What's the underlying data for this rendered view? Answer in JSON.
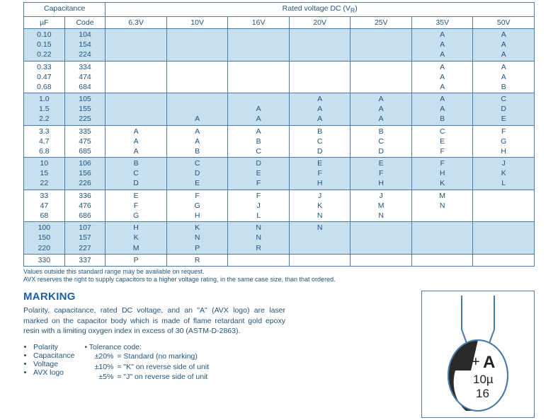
{
  "table": {
    "header_cap": "Capacitance",
    "header_rated": "Rated voltage DC (V",
    "header_rated_sub": "R",
    "header_rated_close": ")",
    "uf": "µF",
    "code": "Code",
    "voltages": [
      "6.3V",
      "10V",
      "16V",
      "20V",
      "25V",
      "35V",
      "50V"
    ],
    "col_widths_pct": [
      8,
      8,
      12,
      12,
      12,
      12,
      12,
      12,
      12
    ],
    "groups": [
      {
        "alt": true,
        "rows": [
          {
            "uf": "0.10",
            "code": "104",
            "v": [
              "",
              "",
              "",
              "",
              "",
              "A",
              "A"
            ]
          },
          {
            "uf": "0.15",
            "code": "154",
            "v": [
              "",
              "",
              "",
              "",
              "",
              "A",
              "A"
            ]
          },
          {
            "uf": "0.22",
            "code": "224",
            "v": [
              "",
              "",
              "",
              "",
              "",
              "A",
              "A"
            ]
          }
        ]
      },
      {
        "alt": false,
        "rows": [
          {
            "uf": "0.33",
            "code": "334",
            "v": [
              "",
              "",
              "",
              "",
              "",
              "A",
              "A"
            ]
          },
          {
            "uf": "0.47",
            "code": "474",
            "v": [
              "",
              "",
              "",
              "",
              "",
              "A",
              "A"
            ]
          },
          {
            "uf": "0.68",
            "code": "684",
            "v": [
              "",
              "",
              "",
              "",
              "",
              "A",
              "B"
            ]
          }
        ]
      },
      {
        "alt": true,
        "rows": [
          {
            "uf": "1.0",
            "code": "105",
            "v": [
              "",
              "",
              "",
              "A",
              "A",
              "A",
              "C"
            ]
          },
          {
            "uf": "1.5",
            "code": "155",
            "v": [
              "",
              "",
              "A",
              "A",
              "A",
              "A",
              "D"
            ]
          },
          {
            "uf": "2.2",
            "code": "225",
            "v": [
              "",
              "A",
              "A",
              "A",
              "A",
              "B",
              "E"
            ]
          }
        ]
      },
      {
        "alt": false,
        "rows": [
          {
            "uf": "3.3",
            "code": "335",
            "v": [
              "A",
              "A",
              "A",
              "B",
              "B",
              "C",
              "F"
            ]
          },
          {
            "uf": "4.7",
            "code": "475",
            "v": [
              "A",
              "A",
              "B",
              "C",
              "C",
              "E",
              "G"
            ]
          },
          {
            "uf": "6.8",
            "code": "685",
            "v": [
              "A",
              "B",
              "C",
              "D",
              "D",
              "F",
              "H"
            ]
          }
        ]
      },
      {
        "alt": true,
        "rows": [
          {
            "uf": "10",
            "code": "106",
            "v": [
              "B",
              "C",
              "D",
              "E",
              "E",
              "F",
              "J"
            ]
          },
          {
            "uf": "15",
            "code": "156",
            "v": [
              "C",
              "D",
              "E",
              "F",
              "F",
              "H",
              "K"
            ]
          },
          {
            "uf": "22",
            "code": "226",
            "v": [
              "D",
              "E",
              "F",
              "H",
              "H",
              "K",
              "L"
            ]
          }
        ]
      },
      {
        "alt": false,
        "rows": [
          {
            "uf": "33",
            "code": "336",
            "v": [
              "E",
              "F",
              "F",
              "J",
              "J",
              "M",
              ""
            ]
          },
          {
            "uf": "47",
            "code": "476",
            "v": [
              "F",
              "G",
              "J",
              "K",
              "M",
              "N",
              ""
            ]
          },
          {
            "uf": "68",
            "code": "686",
            "v": [
              "G",
              "H",
              "L",
              "N",
              "N",
              "",
              ""
            ]
          }
        ]
      },
      {
        "alt": true,
        "rows": [
          {
            "uf": "100",
            "code": "107",
            "v": [
              "H",
              "K",
              "N",
              "N",
              "",
              "",
              ""
            ]
          },
          {
            "uf": "150",
            "code": "157",
            "v": [
              "K",
              "N",
              "N",
              "",
              "",
              "",
              ""
            ]
          },
          {
            "uf": "220",
            "code": "227",
            "v": [
              "M",
              "P",
              "R",
              "",
              "",
              "",
              ""
            ]
          }
        ]
      },
      {
        "alt": false,
        "rows": [
          {
            "uf": "330",
            "code": "337",
            "v": [
              "P",
              "R",
              "",
              "",
              "",
              "",
              ""
            ]
          }
        ]
      }
    ]
  },
  "footnotes": {
    "l1": "Values outside this standard range may be available on request.",
    "l2": "AVX reserves the right to supply capacitors to a higher voltage rating, in the same case size, than that ordered."
  },
  "marking": {
    "heading": "MARKING",
    "para": "Polarity, capacitance, rated DC voltage, and an \"A\" (AVX logo) are laser marked on the capacitor body which is made of flame retardant gold epoxy resin with a limiting oxygen index in excess of 30 (ASTM-D-2863).",
    "list1": [
      "Polarity",
      "Capacitance",
      "Voltage",
      "AVX logo"
    ],
    "tol_heading": "Tolerance code:",
    "tol_rows": [
      {
        "pct": "±20%",
        "desc": "= Standard (no marking)"
      },
      {
        "pct": "±10%",
        "desc": "= \"K\" on reverse side of unit"
      },
      {
        "pct": "±5%",
        "desc": "= \"J\" on reverse side of unit"
      }
    ]
  },
  "diagram": {
    "plus": "+",
    "logo": "A",
    "cap": "10µ",
    "volt": "16",
    "stroke": "#4a7aa8",
    "fill_dark": "#2a2a2a",
    "fill_body": "#ffffff"
  }
}
